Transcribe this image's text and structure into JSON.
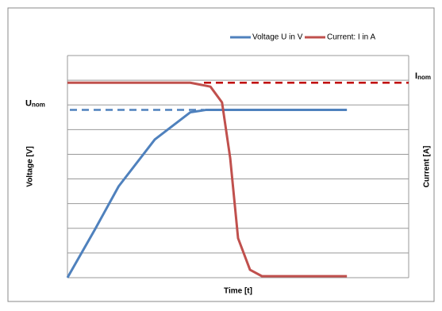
{
  "chart_data": {
    "type": "line",
    "x_label": "Time [t]",
    "y_label": "Voltage [V]",
    "y2_label": "Current [A]",
    "xlim": [
      0,
      10
    ],
    "ylim": [
      0,
      9
    ],
    "yticks": [
      0,
      1,
      2,
      3,
      4,
      5,
      6,
      7,
      8,
      9
    ],
    "grid": true,
    "legend": "top-right",
    "series": [
      {
        "name": "Voltage U in V",
        "color": "#4f81bd",
        "x": [
          0,
          0.8,
          1.5,
          2.56,
          3.6,
          4.07,
          8.19
        ],
        "values": [
          0,
          1.94,
          3.7,
          5.6,
          6.7,
          6.8,
          6.8
        ]
      },
      {
        "name": "Current: I in A",
        "color": "#c0504d",
        "x": [
          0,
          3.6,
          4.19,
          4.53,
          4.77,
          5.0,
          5.35,
          5.7,
          8.19
        ],
        "values": [
          7.9,
          7.9,
          7.74,
          7.1,
          4.84,
          1.6,
          0.32,
          0.06,
          0.06
        ]
      }
    ],
    "reference_lines": [
      {
        "label": "U",
        "label_sub": "nom",
        "value": 6.8,
        "color": "#4f81bd",
        "x": [
          0.07,
          4.0
        ]
      },
      {
        "label": "I",
        "label_sub": "nom",
        "value": 7.9,
        "color": "#c00000",
        "x": [
          4.0,
          10
        ]
      }
    ]
  }
}
